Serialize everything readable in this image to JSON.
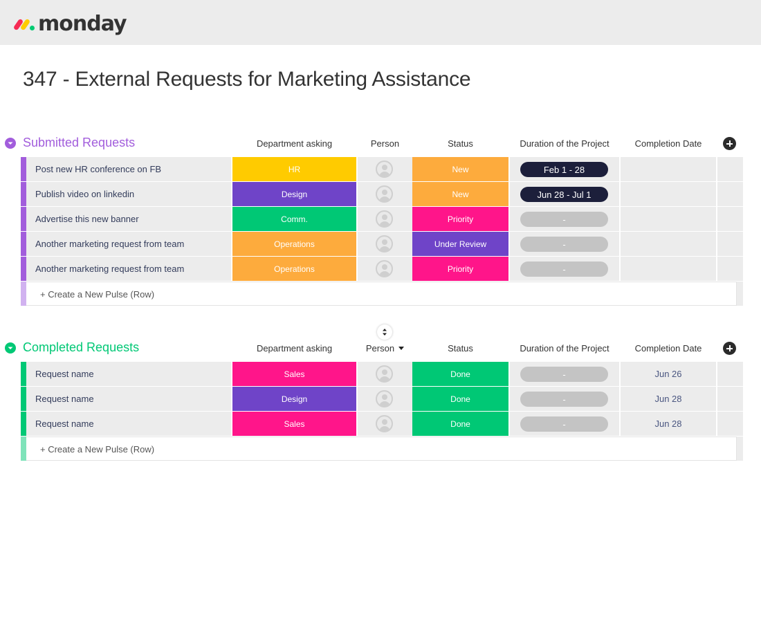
{
  "app": {
    "logo_text": "monday"
  },
  "page": {
    "title": "347 - External Requests for Marketing Assistance"
  },
  "colors": {
    "purple_group": "#a25ddc",
    "green_group": "#00c875",
    "hr": "#ffcb00",
    "design": "#6f44c8",
    "comm": "#00c875",
    "operations": "#fdab3d",
    "sales": "#ff158a",
    "new": "#fdab3d",
    "priority": "#ff158a",
    "under_review": "#6f44c8",
    "done": "#00c875",
    "pill_dark": "#1c1f3b",
    "pill_empty": "#c4c4c4"
  },
  "columns": {
    "department": "Department asking",
    "person": "Person",
    "status": "Status",
    "duration": "Duration of the Project",
    "completion": "Completion Date"
  },
  "groups": [
    {
      "title": "Submitted Requests",
      "create_label": "+ Create a New Pulse (Row)",
      "rows": [
        {
          "name": "Post new HR conference on FB",
          "department": "HR",
          "status": "New",
          "duration": "Feb 1 - 28",
          "completion": ""
        },
        {
          "name": "Publish video on linkedin",
          "department": "Design",
          "status": "New",
          "duration": "Jun 28 - Jul 1",
          "completion": ""
        },
        {
          "name": "Advertise this new banner",
          "department": "Comm.",
          "status": "Priority",
          "duration": "-",
          "completion": ""
        },
        {
          "name": "Another marketing request from team",
          "department": "Operations",
          "status": "Under Review",
          "duration": "-",
          "completion": ""
        },
        {
          "name": "Another marketing request from team",
          "department": "Operations",
          "status": "Priority",
          "duration": "-",
          "completion": ""
        }
      ]
    },
    {
      "title": "Completed Requests",
      "create_label": "+ Create a New Pulse (Row)",
      "rows": [
        {
          "name": "Request name",
          "department": "Sales",
          "status": "Done",
          "duration": "-",
          "completion": "Jun 26"
        },
        {
          "name": "Request name",
          "department": "Design",
          "status": "Done",
          "duration": "-",
          "completion": "Jun 28"
        },
        {
          "name": "Request name",
          "department": "Sales",
          "status": "Done",
          "duration": "-",
          "completion": "Jun 28"
        }
      ]
    }
  ]
}
